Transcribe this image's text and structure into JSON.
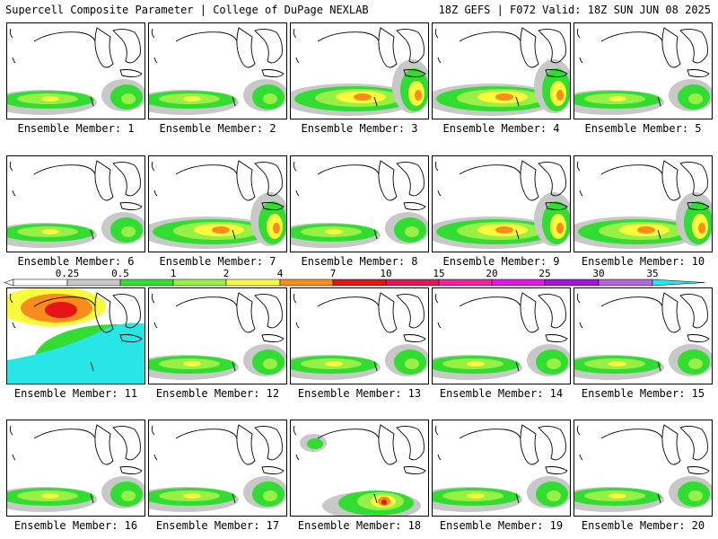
{
  "header": {
    "title_left": "Supercell Composite Parameter | College of DuPage NEXLAB",
    "title_right": "18Z GEFS | F072 Valid: 18Z SUN JUN 08 2025"
  },
  "legend": {
    "labels": [
      "0.25",
      "0.5",
      "1",
      "2",
      "4",
      "7",
      "10",
      "15",
      "20",
      "25",
      "30",
      "35"
    ],
    "colors": [
      "#c8c8c8",
      "#32dc32",
      "#96f046",
      "#fafa3c",
      "#fa8c1e",
      "#e61414",
      "#e6145a",
      "#fa1ea0",
      "#e614e6",
      "#a014dc",
      "#b464dc",
      "#28e6e6"
    ]
  },
  "panels": [
    {
      "label": "Ensemble Member: 1",
      "level": "low"
    },
    {
      "label": "Ensemble Member: 2",
      "level": "low"
    },
    {
      "label": "Ensemble Member: 3",
      "level": "moderate"
    },
    {
      "label": "Ensemble Member: 4",
      "level": "moderate"
    },
    {
      "label": "Ensemble Member: 5",
      "level": "low"
    },
    {
      "label": "Ensemble Member: 6",
      "level": "low"
    },
    {
      "label": "Ensemble Member: 7",
      "level": "moderate"
    },
    {
      "label": "Ensemble Member: 8",
      "level": "low"
    },
    {
      "label": "Ensemble Member: 9",
      "level": "moderate"
    },
    {
      "label": "Ensemble Member: 10",
      "level": "moderate"
    },
    {
      "label": "Ensemble Member: 11",
      "level": "extreme"
    },
    {
      "label": "Ensemble Member: 12",
      "level": "low"
    },
    {
      "label": "Ensemble Member: 13",
      "level": "low"
    },
    {
      "label": "Ensemble Member: 14",
      "level": "low"
    },
    {
      "label": "Ensemble Member: 15",
      "level": "low"
    },
    {
      "label": "Ensemble Member: 16",
      "level": "low"
    },
    {
      "label": "Ensemble Member: 17",
      "level": "low"
    },
    {
      "label": "Ensemble Member: 18",
      "level": "high"
    },
    {
      "label": "Ensemble Member: 19",
      "level": "low"
    },
    {
      "label": "Ensemble Member: 20",
      "level": "low"
    }
  ]
}
